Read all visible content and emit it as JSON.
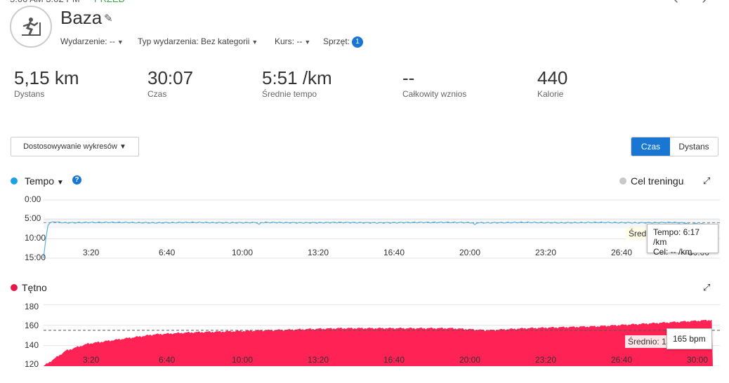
{
  "header": {
    "title": "Baza",
    "meta": [
      {
        "label": "Wydarzenie: --"
      },
      {
        "label": "Typ wydarzenia: Bez kategorii"
      },
      {
        "label": "Kurs: --"
      },
      {
        "label": "Sprzęt:",
        "badge": "1"
      }
    ]
  },
  "icons": {
    "activity": "treadmill-runner-icon",
    "edit": "pencil-icon",
    "expand": "expand-arrows-icon",
    "help": "question-icon",
    "caret": "caret-down-icon"
  },
  "stats": [
    {
      "value": "5,15 km",
      "label": "Dystans"
    },
    {
      "value": "30:07",
      "label": "Czas"
    },
    {
      "value": "5:51 /km",
      "label": "Średnie tempo"
    },
    {
      "value": "--",
      "label": "Całkowity wznios"
    },
    {
      "value": "440",
      "label": "Kalorie"
    }
  ],
  "toolbar": {
    "customize_label": "Dostosowywanie wykresów",
    "toggle_active": "Czas",
    "toggle_inactive": "Dystans"
  },
  "colors": {
    "accent": "#1976d2",
    "pace": "#5bb3e0",
    "heart_rate": "#ff2255",
    "target_dot": "#c8c8c8"
  },
  "pace_chart": {
    "title": "Tempo",
    "target_label": "Cel treningu",
    "avg_tag": "Śred",
    "tooltip_line1": "Tempo: 6:17 /km",
    "tooltip_line2": "Cel: -- /km",
    "y_ticks": [
      "0:00",
      "5:00",
      "10:00",
      "15:00"
    ],
    "x_ticks": [
      "3:20",
      "6:40",
      "10:00",
      "13:20",
      "16:40",
      "20:00",
      "23:20",
      "26:40",
      "30:00"
    ]
  },
  "hr_chart": {
    "title": "Tętno",
    "avg_tag": "Średnio: 1",
    "tooltip": "165 bpm",
    "y_ticks": [
      "180",
      "160",
      "140",
      "120"
    ],
    "x_ticks": [
      "3:20",
      "6:40",
      "10:00",
      "13:20",
      "16:40",
      "20:00",
      "23:20",
      "26:40",
      "30:00"
    ]
  },
  "chart_data": [
    {
      "type": "line",
      "title": "Tempo",
      "ylabel": "",
      "xlabel": "",
      "y_unit": "min/km",
      "y_inverted": true,
      "ylim": [
        0,
        15
      ],
      "xlim": [
        "0:00",
        "30:07"
      ],
      "x": [
        "0:00",
        "0:10",
        "0:20",
        "1:00",
        "2:00",
        "3:20",
        "5:00",
        "6:40",
        "8:20",
        "10:00",
        "11:40",
        "13:20",
        "15:00",
        "16:40",
        "18:20",
        "20:00",
        "21:40",
        "23:20",
        "25:00",
        "26:40",
        "28:20",
        "30:00"
      ],
      "values": [
        15,
        6.8,
        5.6,
        5.9,
        5.8,
        5.8,
        5.9,
        5.8,
        5.9,
        5.8,
        5.9,
        5.8,
        5.9,
        5.8,
        5.8,
        5.9,
        5.8,
        5.9,
        5.8,
        5.9,
        5.8,
        6.3
      ],
      "average": 5.85,
      "grid": true
    },
    {
      "type": "area",
      "title": "Tętno",
      "ylabel": "",
      "xlabel": "",
      "y_unit": "bpm",
      "ylim": [
        120,
        183
      ],
      "xlim": [
        "0:00",
        "30:07"
      ],
      "x": [
        "0:00",
        "1:00",
        "2:00",
        "3:20",
        "5:00",
        "6:40",
        "8:20",
        "10:00",
        "11:40",
        "13:20",
        "15:00",
        "16:40",
        "18:20",
        "20:00",
        "21:40",
        "23:20",
        "25:00",
        "26:40",
        "28:20",
        "30:00"
      ],
      "values": [
        120,
        135,
        142,
        146,
        151,
        153,
        154,
        155,
        156,
        157,
        157,
        157,
        157,
        155,
        157,
        158,
        159,
        161,
        163,
        165
      ],
      "average": 155,
      "grid": true
    }
  ]
}
